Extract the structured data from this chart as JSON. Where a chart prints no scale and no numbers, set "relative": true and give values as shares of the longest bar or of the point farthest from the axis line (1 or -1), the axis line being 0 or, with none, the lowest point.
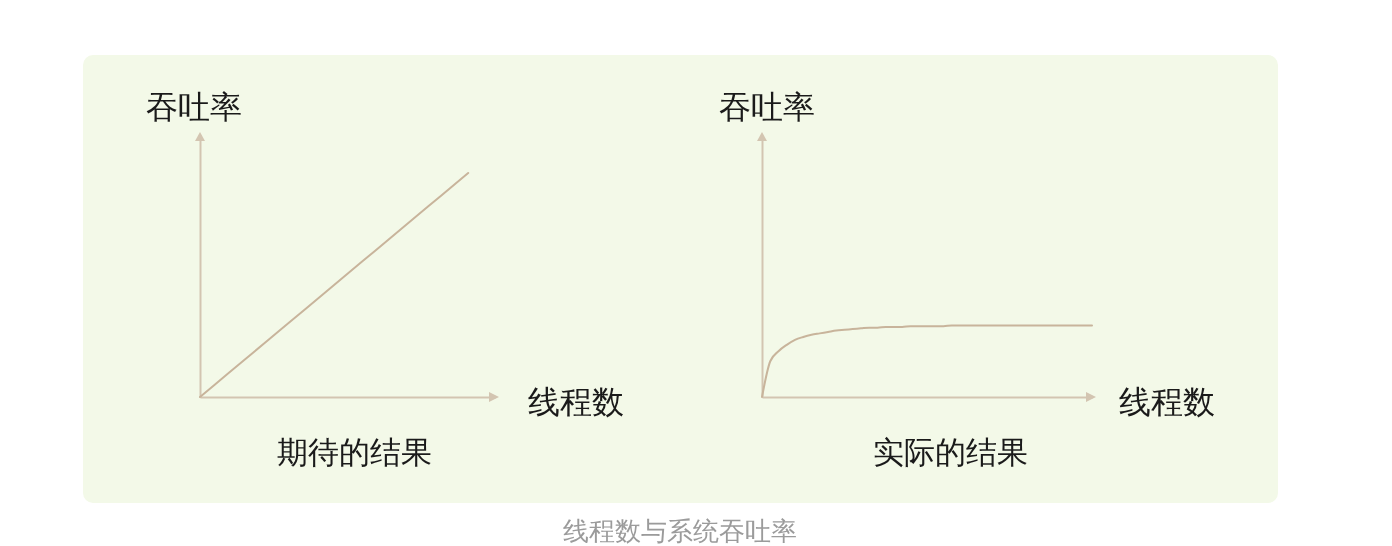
{
  "chart_data": [
    {
      "type": "line",
      "title": "期待的结果",
      "xlabel": "线程数",
      "ylabel": "吞吐率",
      "relative": true,
      "color": "#c8b49b",
      "categories": [
        null,
        null,
        null,
        null,
        null,
        null,
        null,
        null,
        null,
        null,
        null,
        null
      ],
      "values": [
        0,
        0.1,
        0.2,
        0.3,
        0.4,
        0.5,
        0.6,
        0.7,
        0.8,
        0.9,
        1,
        null
      ],
      "annotations": [
        "线程数与系统吞吐率"
      ]
    },
    {
      "type": "line",
      "title": "实际的结果",
      "xlabel": "线程数",
      "ylabel": "吞吐率",
      "relative": true,
      "color": "#c8b49b",
      "categories": [
        null,
        null,
        null,
        null,
        null,
        null,
        null,
        null,
        null,
        null,
        null,
        null,
        null,
        null,
        null,
        null,
        null,
        null,
        null,
        null,
        null,
        null,
        null,
        null,
        null,
        null,
        null,
        null,
        null,
        null,
        null,
        null,
        null,
        null,
        null,
        null,
        null,
        null,
        null,
        null,
        null
      ],
      "values": [
        0,
        0.5,
        0.64,
        0.73,
        0.8,
        0.84,
        0.87,
        0.89,
        0.91,
        0.93,
        0.94,
        0.95,
        0.96,
        0.97,
        0.97,
        0.98,
        0.98,
        0.98,
        0.99,
        0.99,
        0.99,
        0.99,
        0.99,
        1,
        1,
        1,
        1,
        1,
        1,
        1,
        1,
        1,
        1,
        1,
        1,
        1,
        1,
        1,
        1,
        1,
        1
      ]
    }
  ]
}
